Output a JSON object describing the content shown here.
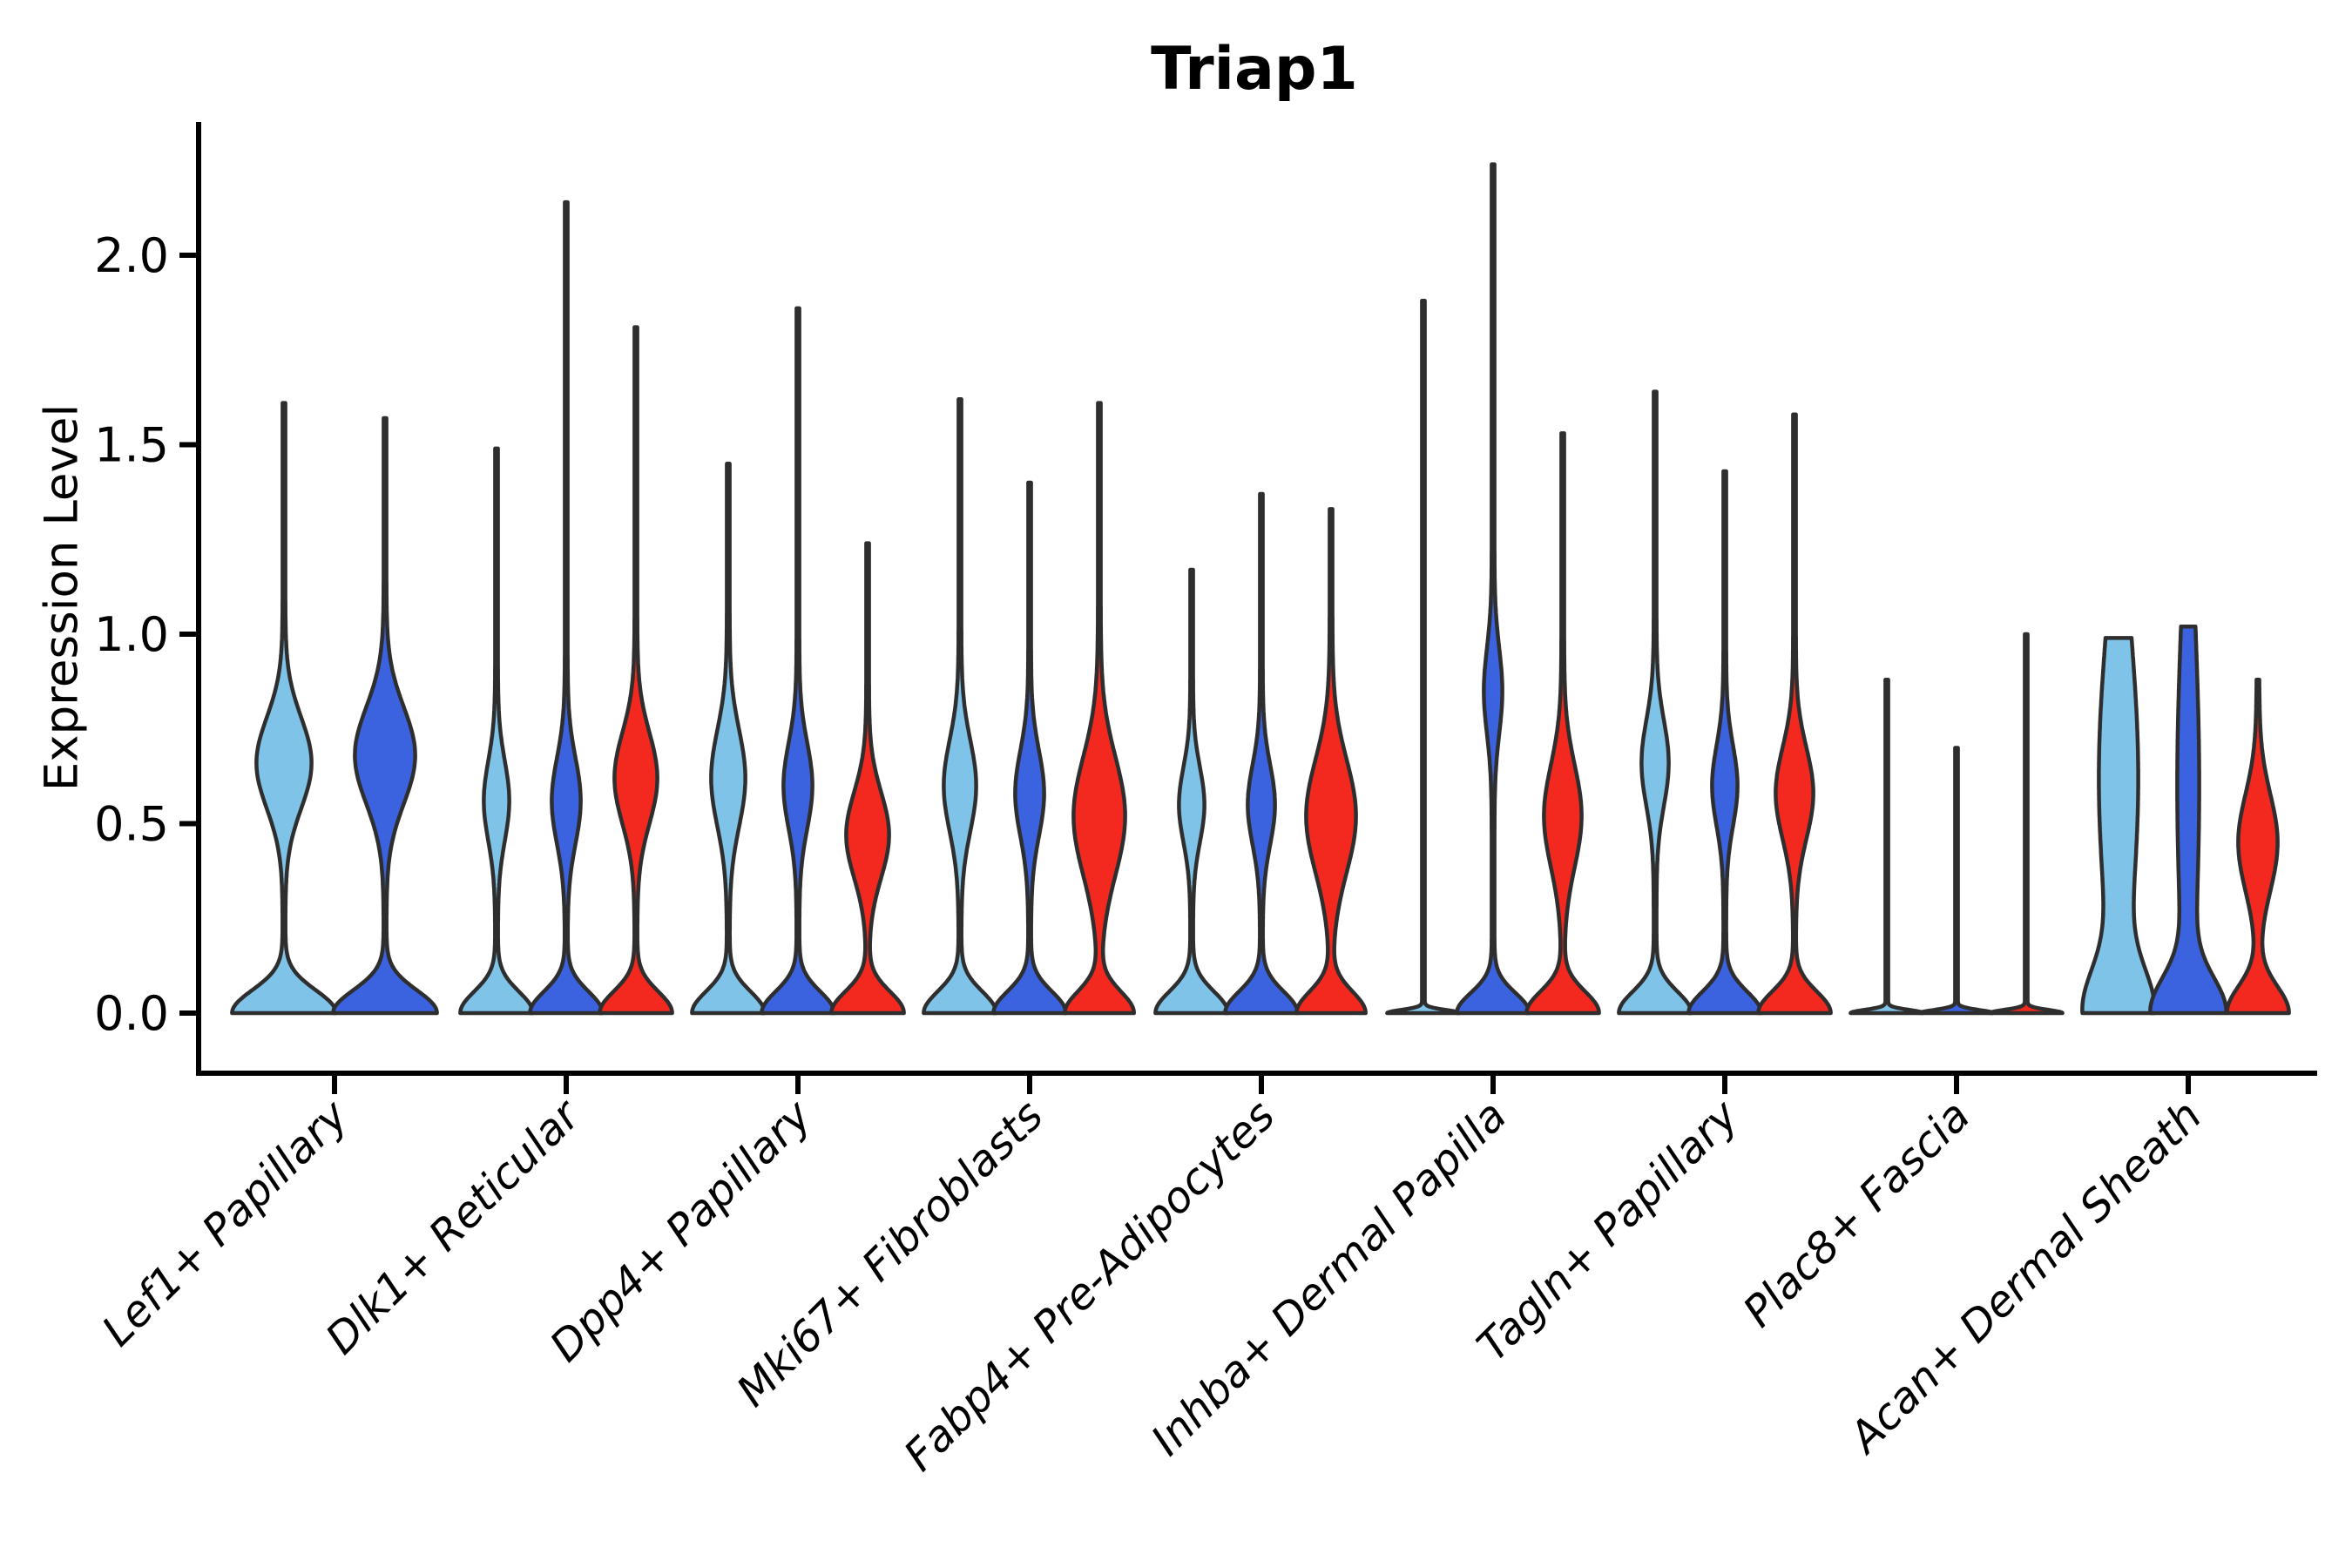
{
  "chart_data": {
    "type": "violin",
    "title": "Triap1",
    "ylabel": "Expression Level",
    "xlabel": "",
    "ytick_labels": [
      "0.0",
      "0.5",
      "1.0",
      "1.5",
      "2.0"
    ],
    "ytick_values": [
      0.0,
      0.5,
      1.0,
      1.5,
      2.0
    ],
    "ylim": [
      -0.16,
      2.35
    ],
    "grid": false,
    "legend": "none",
    "x_label_rotation_deg": 45,
    "categories": [
      "Lef1+ Papillary",
      "Dlk1+ Reticular",
      "Dpp4+ Papillary",
      "Mki67+ Fibroblasts",
      "Fabp4+ Pre-Adipocytes",
      "Inhba+ Dermal Papilla",
      "Tagln+ Papillary",
      "Plac8+ Fascia",
      "Acan+ Dermal Sheath"
    ],
    "colors": {
      "light_blue": "#7FC3E8",
      "dark_blue": "#3B63DF",
      "red": "#F3281F",
      "outline": "#2E2E2E",
      "axis": "#000000"
    },
    "groups": [
      {
        "category": "Lef1+ Papillary",
        "violins": [
          {
            "series": "light_blue",
            "peak": 1.61,
            "base": [
              58,
              0.085
            ],
            "bulge": [
              30,
              0.66,
              0.17
            ],
            "flat_top": false,
            "flat_base": false
          },
          {
            "series": "dark_blue",
            "peak": 1.57,
            "base": [
              58,
              0.085
            ],
            "bulge": [
              33,
              0.68,
              0.18
            ],
            "flat_top": false,
            "flat_base": false
          }
        ]
      },
      {
        "category": "Dlk1+ Reticular",
        "violins": [
          {
            "series": "light_blue",
            "peak": 1.49,
            "base": [
              40,
              0.08
            ],
            "bulge": [
              13,
              0.56,
              0.15
            ],
            "flat_top": false,
            "flat_base": false
          },
          {
            "series": "dark_blue",
            "peak": 2.14,
            "base": [
              40,
              0.08
            ],
            "bulge": [
              15,
              0.56,
              0.16
            ],
            "flat_top": false,
            "flat_base": false
          },
          {
            "series": "red",
            "peak": 1.81,
            "base": [
              40,
              0.08
            ],
            "bulge": [
              23,
              0.62,
              0.17
            ],
            "flat_top": false,
            "flat_base": false
          }
        ]
      },
      {
        "category": "Dpp4+ Papillary",
        "violins": [
          {
            "series": "light_blue",
            "peak": 1.45,
            "base": [
              40,
              0.08
            ],
            "bulge": [
              18,
              0.62,
              0.18
            ],
            "flat_top": false,
            "flat_base": false
          },
          {
            "series": "dark_blue",
            "peak": 1.86,
            "base": [
              40,
              0.08
            ],
            "bulge": [
              15,
              0.6,
              0.16
            ],
            "flat_top": false,
            "flat_base": false
          },
          {
            "series": "red",
            "peak": 1.24,
            "base": [
              40,
              0.08
            ],
            "bulge": [
              23,
              0.47,
              0.16
            ],
            "flat_top": false,
            "flat_base": false
          }
        ]
      },
      {
        "category": "Mki67+ Fibroblasts",
        "violins": [
          {
            "series": "light_blue",
            "peak": 1.62,
            "base": [
              40,
              0.08
            ],
            "bulge": [
              17,
              0.6,
              0.17
            ],
            "flat_top": false,
            "flat_base": false
          },
          {
            "series": "dark_blue",
            "peak": 1.4,
            "base": [
              40,
              0.08
            ],
            "bulge": [
              15,
              0.58,
              0.16
            ],
            "flat_top": false,
            "flat_base": false
          },
          {
            "series": "red",
            "peak": 1.61,
            "base": [
              38,
              0.08
            ],
            "bulge": [
              28,
              0.52,
              0.22
            ],
            "flat_top": false,
            "flat_base": false
          }
        ]
      },
      {
        "category": "Fabp4+ Pre-Adipocytes",
        "violins": [
          {
            "series": "light_blue",
            "peak": 1.17,
            "base": [
              40,
              0.08
            ],
            "bulge": [
              13,
              0.55,
              0.14
            ],
            "flat_top": false,
            "flat_base": false
          },
          {
            "series": "dark_blue",
            "peak": 1.37,
            "base": [
              40,
              0.08
            ],
            "bulge": [
              14,
              0.55,
              0.15
            ],
            "flat_top": false,
            "flat_base": false
          },
          {
            "series": "red",
            "peak": 1.33,
            "base": [
              38,
              0.08
            ],
            "bulge": [
              27,
              0.52,
              0.21
            ],
            "flat_top": false,
            "flat_base": false
          }
        ]
      },
      {
        "category": "Inhba+ Dermal Papilla",
        "violins": [
          {
            "series": "light_blue",
            "peak": 1.88,
            "base": [
              40,
              0.012
            ],
            "bulge": null,
            "flat_top": false,
            "flat_base": true
          },
          {
            "series": "dark_blue",
            "peak": 2.24,
            "base": [
              40,
              0.075
            ],
            "bulge": [
              9,
              0.85,
              0.16
            ],
            "flat_top": false,
            "flat_base": false
          },
          {
            "series": "red",
            "peak": 1.53,
            "base": [
              40,
              0.08
            ],
            "bulge": [
              20,
              0.52,
              0.19
            ],
            "flat_top": false,
            "flat_base": false
          }
        ]
      },
      {
        "category": "Tagln+ Papillary",
        "violins": [
          {
            "series": "light_blue",
            "peak": 1.64,
            "base": [
              40,
              0.08
            ],
            "bulge": [
              14,
              0.66,
              0.16
            ],
            "flat_top": false,
            "flat_base": false
          },
          {
            "series": "dark_blue",
            "peak": 1.43,
            "base": [
              40,
              0.08
            ],
            "bulge": [
              13,
              0.6,
              0.15
            ],
            "flat_top": false,
            "flat_base": false
          },
          {
            "series": "red",
            "peak": 1.58,
            "base": [
              40,
              0.08
            ],
            "bulge": [
              20,
              0.58,
              0.17
            ],
            "flat_top": false,
            "flat_base": false
          }
        ]
      },
      {
        "category": "Plac8+ Fascia",
        "violins": [
          {
            "series": "light_blue",
            "peak": 0.88,
            "base": [
              40,
              0.012
            ],
            "bulge": null,
            "flat_top": false,
            "flat_base": true
          },
          {
            "series": "dark_blue",
            "peak": 0.7,
            "base": [
              40,
              0.012
            ],
            "bulge": null,
            "flat_top": false,
            "flat_base": true
          },
          {
            "series": "red",
            "peak": 1.0,
            "base": [
              40,
              0.012
            ],
            "bulge": null,
            "flat_top": false,
            "flat_base": true
          }
        ]
      },
      {
        "category": "Acan+ Dermal Sheath",
        "violins": [
          {
            "series": "light_blue",
            "peak": 0.99,
            "base": [
              34,
              0.16
            ],
            "bulge": [
              21,
              0.62,
              0.55
            ],
            "flat_top": true,
            "flat_base": false
          },
          {
            "series": "dark_blue",
            "peak": 1.02,
            "base": [
              38,
              0.13
            ],
            "bulge": [
              11,
              0.6,
              0.6
            ],
            "flat_top": true,
            "flat_base": false
          },
          {
            "series": "red",
            "peak": 0.88,
            "base": [
              34,
              0.1
            ],
            "bulge": [
              21,
              0.45,
              0.18
            ],
            "flat_top": false,
            "flat_base": false
          }
        ]
      }
    ]
  }
}
